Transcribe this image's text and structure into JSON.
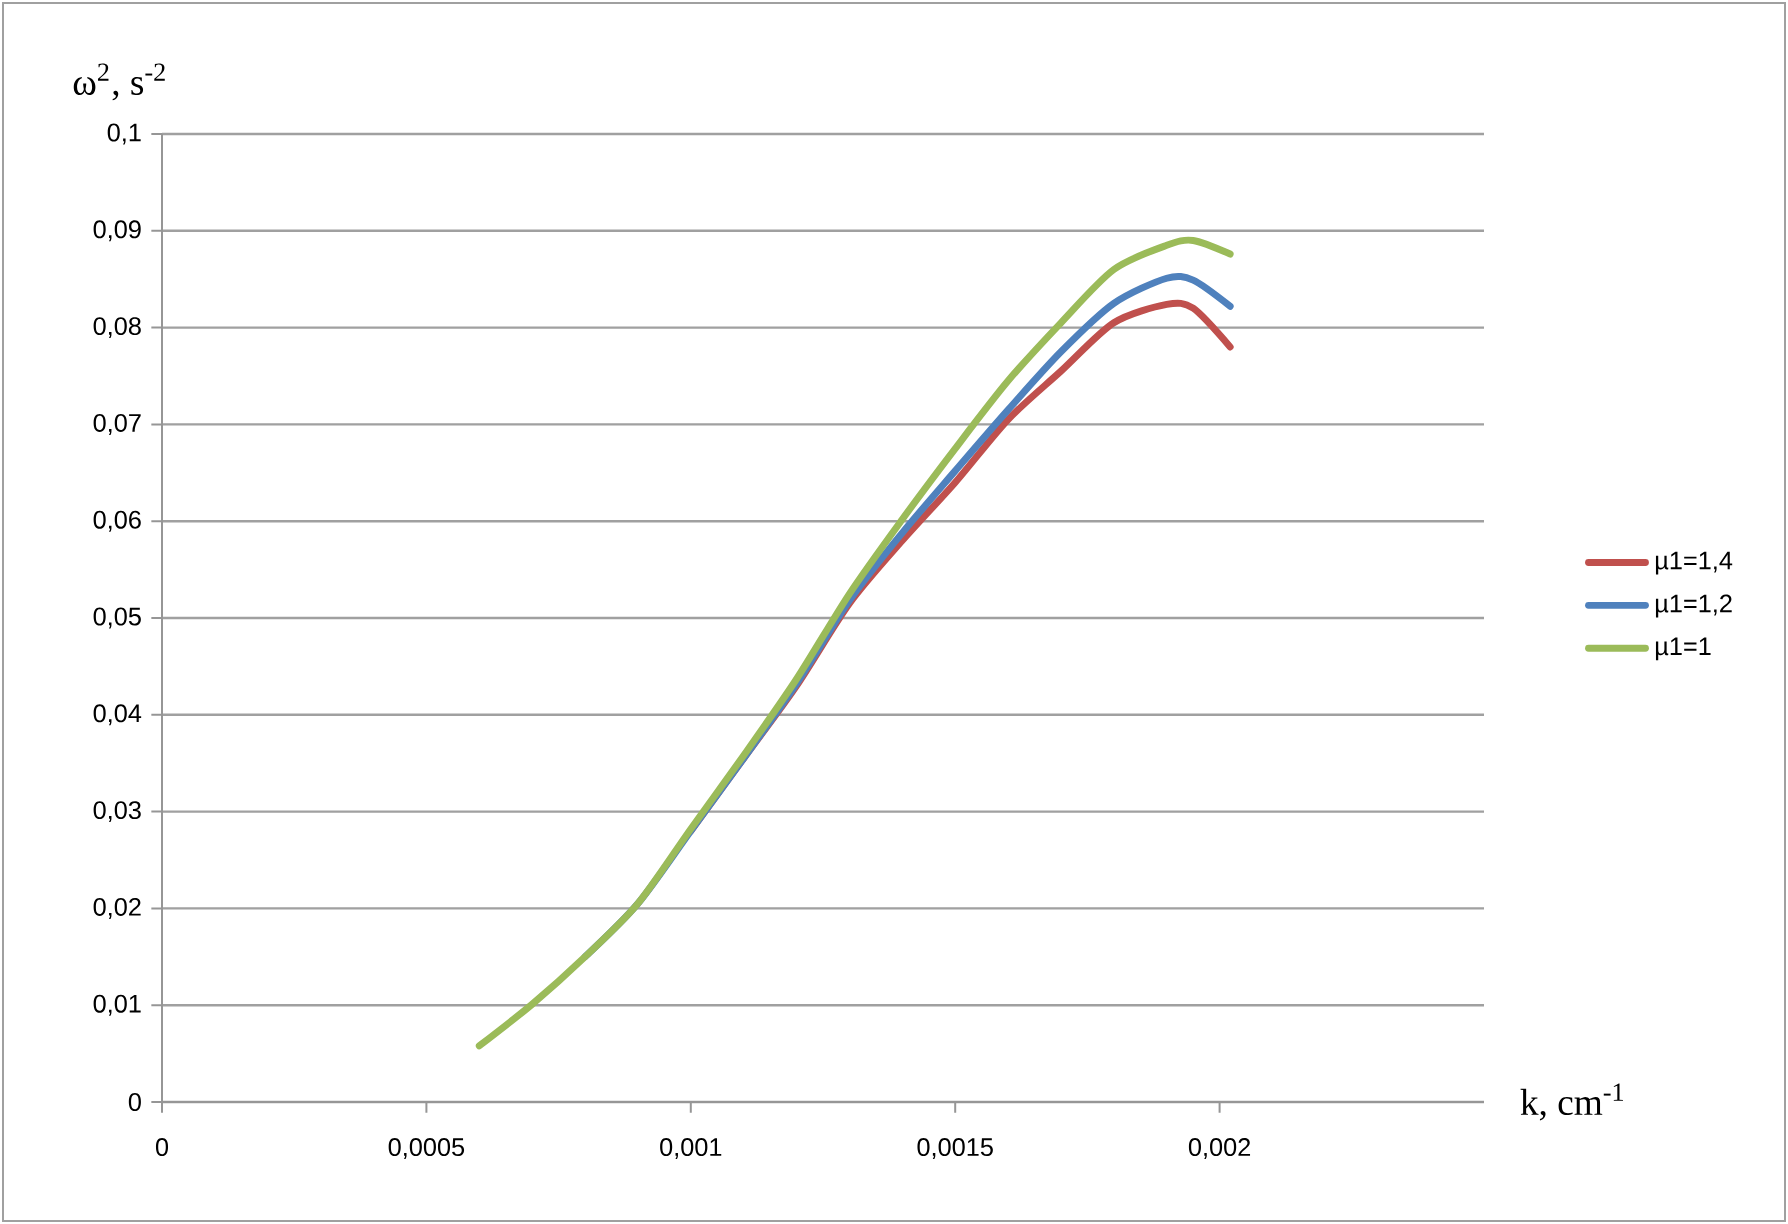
{
  "chart_data": {
    "type": "line",
    "xlabel": "k, cm$^{-1}$",
    "ylabel": "ω$^{2}$, s$^{-2}$",
    "xlim": [
      0,
      0.0025
    ],
    "ylim": [
      0,
      0.1
    ],
    "xticks": [
      {
        "value": 0,
        "label": "0"
      },
      {
        "value": 0.0005,
        "label": "0,0005"
      },
      {
        "value": 0.001,
        "label": "0,001"
      },
      {
        "value": 0.0015,
        "label": "0,0015"
      },
      {
        "value": 0.002,
        "label": "0,002"
      }
    ],
    "yticks": [
      {
        "value": 0,
        "label": "0"
      },
      {
        "value": 0.01,
        "label": "0,01"
      },
      {
        "value": 0.02,
        "label": "0,02"
      },
      {
        "value": 0.03,
        "label": "0,03"
      },
      {
        "value": 0.04,
        "label": "0,04"
      },
      {
        "value": 0.05,
        "label": "0,05"
      },
      {
        "value": 0.06,
        "label": "0,06"
      },
      {
        "value": 0.07,
        "label": "0,07"
      },
      {
        "value": 0.08,
        "label": "0,08"
      },
      {
        "value": 0.09,
        "label": "0,09"
      },
      {
        "value": 0.1,
        "label": "0,1"
      }
    ],
    "grid": "y",
    "legend": "right",
    "x": [
      0.0006,
      0.0007,
      0.0008,
      0.0009,
      0.001,
      0.0011,
      0.0012,
      0.0013,
      0.0014,
      0.0015,
      0.0016,
      0.0017,
      0.0018,
      0.0019,
      0.00195,
      0.00202
    ],
    "series": [
      {
        "name": "µ1=1,4",
        "color": "#c0504d",
        "values": [
          null,
          null,
          null,
          null,
          0.028,
          0.0355,
          0.043,
          0.0515,
          0.058,
          0.064,
          0.0705,
          0.0755,
          0.0805,
          0.0824,
          0.082,
          0.078
        ]
      },
      {
        "name": "µ1=1,2",
        "color": "#4f81bd",
        "values": [
          null,
          null,
          0.015,
          0.0205,
          0.028,
          0.0355,
          0.0432,
          0.0518,
          0.0588,
          0.0652,
          0.0715,
          0.0775,
          0.0825,
          0.0851,
          0.0849,
          0.0822
        ]
      },
      {
        "name": "µ1=1",
        "color": "#9bbb59",
        "values": [
          0.0058,
          0.0101,
          0.015,
          0.0205,
          0.0282,
          0.0358,
          0.0437,
          0.0525,
          0.0602,
          0.0675,
          0.0745,
          0.0805,
          0.086,
          0.0885,
          0.089,
          0.0876
        ]
      }
    ]
  }
}
